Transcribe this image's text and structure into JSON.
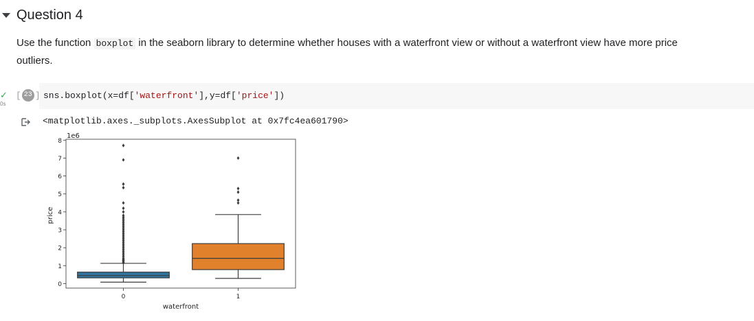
{
  "section": {
    "title": "Question 4"
  },
  "description": {
    "before": "Use the function ",
    "code": "boxplot",
    "after": " in the seaborn library to determine whether houses with a waterfront view or without a waterfront view have more price outliers."
  },
  "cell": {
    "status": "✓",
    "runtime": "0s",
    "exec_count": "23",
    "code_prefix": "sns.boxplot(x=df[",
    "code_str1": "'waterfront'",
    "code_mid": "],y=df[",
    "code_str2": "'price'",
    "code_suffix": "])",
    "output": "<matplotlib.axes._subplots.AxesSubplot at 0x7fc4ea601790>"
  },
  "colors": {
    "series0": "#3274a1",
    "series1": "#e1812c"
  },
  "chart_data": {
    "type": "box",
    "xlabel": "waterfront",
    "ylabel": "price",
    "offset_label": "1e6",
    "categories": [
      "0",
      "1"
    ],
    "ylim": [
      -0.25,
      8.05
    ],
    "yticks": [
      0,
      1,
      2,
      3,
      4,
      5,
      6,
      7,
      8
    ],
    "boxes": [
      {
        "category": "0",
        "whisker_low": 0.08,
        "q1": 0.32,
        "median": 0.45,
        "q3": 0.64,
        "whisker_high": 1.13,
        "outliers": [
          1.15,
          1.2,
          1.25,
          1.3,
          1.35,
          1.4,
          1.5,
          1.6,
          1.7,
          1.8,
          1.9,
          2.0,
          2.1,
          2.2,
          2.3,
          2.4,
          2.5,
          2.6,
          2.7,
          2.8,
          2.9,
          3.0,
          3.1,
          3.2,
          3.3,
          3.4,
          3.5,
          3.6,
          3.7,
          3.8,
          4.0,
          4.2,
          4.5,
          5.35,
          5.55,
          6.9,
          7.7
        ]
      },
      {
        "category": "1",
        "whisker_low": 0.29,
        "q1": 0.78,
        "median": 1.41,
        "q3": 2.23,
        "whisker_high": 3.85,
        "outliers": [
          4.5,
          4.65,
          5.1,
          5.3,
          7.0
        ]
      }
    ]
  }
}
